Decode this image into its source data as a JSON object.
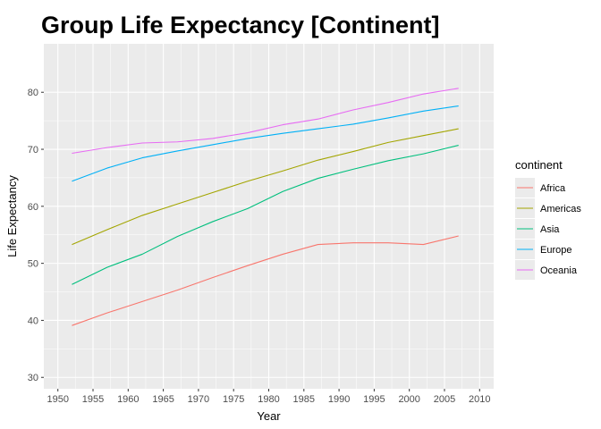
{
  "chart_data": {
    "type": "line",
    "title": "Group Life Expectancy [Continent]",
    "xlabel": "Year",
    "ylabel": "Life Expectancy",
    "x_ticks": [
      1950,
      1955,
      1960,
      1965,
      1970,
      1975,
      1980,
      1985,
      1990,
      1995,
      2000,
      2005,
      2010
    ],
    "y_ticks": [
      30,
      40,
      50,
      60,
      70,
      80
    ],
    "xlim": [
      1948,
      2012
    ],
    "ylim": [
      28,
      88.5
    ],
    "grid": true,
    "background": "#ebebeb",
    "legend_title": "continent",
    "legend_position": "right",
    "x": [
      1952,
      1957,
      1962,
      1967,
      1972,
      1977,
      1982,
      1987,
      1992,
      1997,
      2002,
      2007
    ],
    "series": [
      {
        "name": "Africa",
        "color": "#F8766D",
        "values": [
          39.1,
          41.3,
          43.3,
          45.3,
          47.5,
          49.6,
          51.6,
          53.3,
          53.6,
          53.6,
          53.3,
          54.8
        ]
      },
      {
        "name": "Americas",
        "color": "#A3A500",
        "values": [
          53.3,
          55.9,
          58.4,
          60.4,
          62.4,
          64.4,
          66.2,
          68.1,
          69.6,
          71.2,
          72.4,
          73.6
        ]
      },
      {
        "name": "Asia",
        "color": "#00BF7D",
        "values": [
          46.3,
          49.3,
          51.6,
          54.7,
          57.3,
          59.6,
          62.6,
          64.9,
          66.5,
          68.0,
          69.2,
          70.7
        ]
      },
      {
        "name": "Europe",
        "color": "#00B0F6",
        "values": [
          64.4,
          66.7,
          68.5,
          69.7,
          70.8,
          71.9,
          72.8,
          73.6,
          74.4,
          75.5,
          76.7,
          77.6
        ]
      },
      {
        "name": "Oceania",
        "color": "#E76BF3",
        "values": [
          69.3,
          70.3,
          71.1,
          71.3,
          71.9,
          72.9,
          74.3,
          75.3,
          76.9,
          78.2,
          79.7,
          80.7
        ]
      }
    ]
  }
}
